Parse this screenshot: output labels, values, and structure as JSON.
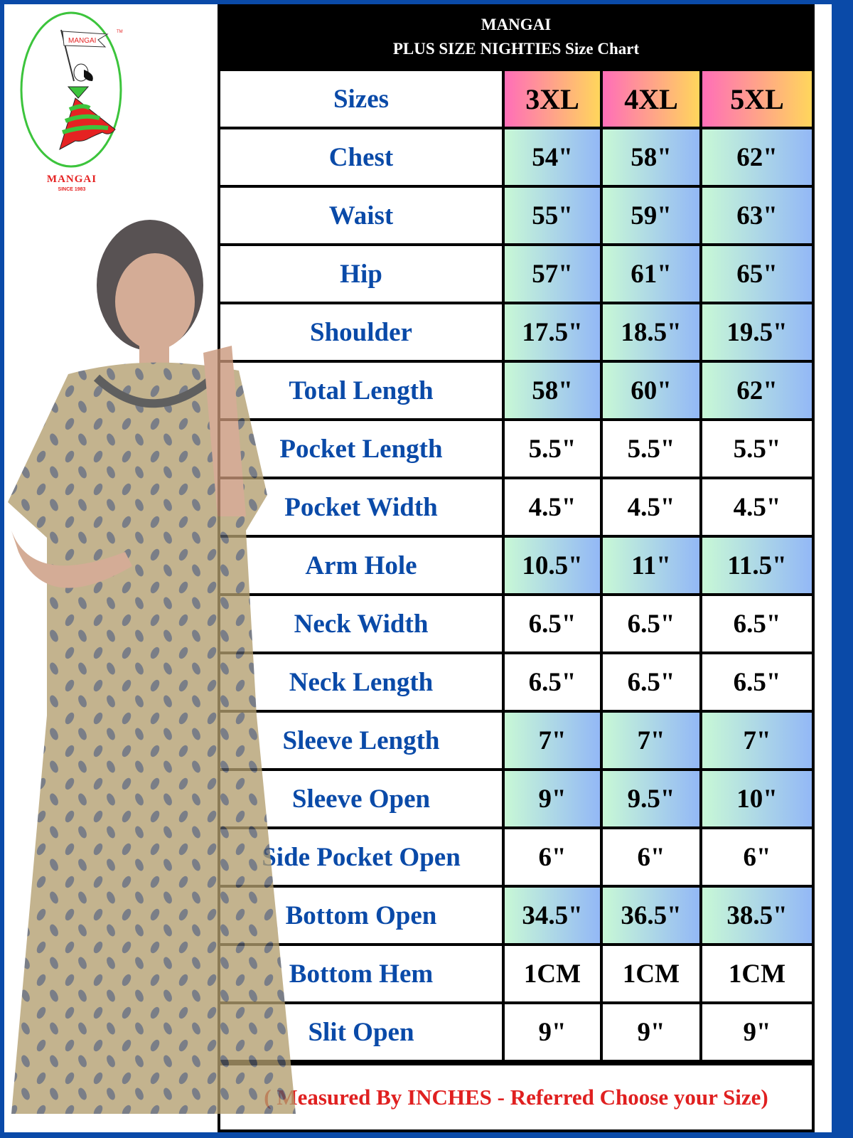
{
  "brand": {
    "logo_flag_text": "MANGAI",
    "name": "MANGAI",
    "tagline": "SINCE 1983",
    "tm": "TM",
    "colors": {
      "red": "#e52222",
      "green": "#3cc43c",
      "border_blue": "#0a4aa8"
    }
  },
  "header": {
    "line1": "MANGAI",
    "line2": "PLUS SIZE NIGHTIES Size Chart"
  },
  "table": {
    "corner": "Sizes",
    "sizes": [
      "3XL",
      "4XL",
      "5XL"
    ],
    "rows": [
      {
        "label": "Chest",
        "values": [
          "54\"",
          "58\"",
          "62\""
        ],
        "highlight": true
      },
      {
        "label": "Waist",
        "values": [
          "55\"",
          "59\"",
          "63\""
        ],
        "highlight": true
      },
      {
        "label": "Hip",
        "values": [
          "57\"",
          "61\"",
          "65\""
        ],
        "highlight": true
      },
      {
        "label": "Shoulder",
        "values": [
          "17.5\"",
          "18.5\"",
          "19.5\""
        ],
        "highlight": true
      },
      {
        "label": "Total Length",
        "values": [
          "58\"",
          "60\"",
          "62\""
        ],
        "highlight": true
      },
      {
        "label": "Pocket Length",
        "values": [
          "5.5\"",
          "5.5\"",
          "5.5\""
        ],
        "highlight": false
      },
      {
        "label": "Pocket Width",
        "values": [
          "4.5\"",
          "4.5\"",
          "4.5\""
        ],
        "highlight": false
      },
      {
        "label": "Arm Hole",
        "values": [
          "10.5\"",
          "11\"",
          "11.5\""
        ],
        "highlight": true
      },
      {
        "label": "Neck Width",
        "values": [
          "6.5\"",
          "6.5\"",
          "6.5\""
        ],
        "highlight": false
      },
      {
        "label": "Neck Length",
        "values": [
          "6.5\"",
          "6.5\"",
          "6.5\""
        ],
        "highlight": false
      },
      {
        "label": "Sleeve Length",
        "values": [
          "7\"",
          "7\"",
          "7\""
        ],
        "highlight": true
      },
      {
        "label": "Sleeve Open",
        "values": [
          "9\"",
          "9.5\"",
          "10\""
        ],
        "highlight": true
      },
      {
        "label": "Side Pocket  Open",
        "values": [
          "6\"",
          "6\"",
          "6\""
        ],
        "highlight": false
      },
      {
        "label": "Bottom Open",
        "values": [
          "34.5\"",
          "36.5\"",
          "38.5\""
        ],
        "highlight": true
      },
      {
        "label": "Bottom Hem",
        "values": [
          "1CM",
          "1CM",
          "1CM"
        ],
        "highlight": false
      },
      {
        "label": "Slit Open",
        "values": [
          "9\"",
          "9\"",
          "9\""
        ],
        "highlight": false
      }
    ]
  },
  "footer": "( Measured By INCHES - Referred Choose your Size)"
}
